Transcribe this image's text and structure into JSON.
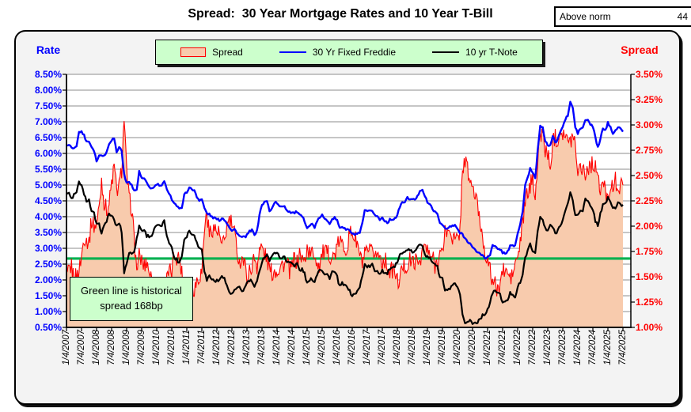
{
  "title": "Spread:  30 Year Mortgage Rates and 10 Year T-Bill",
  "above_norm": {
    "label": "Above norm",
    "value": "44"
  },
  "left_axis_title": "Rate",
  "right_axis_title": "Spread",
  "legend": [
    {
      "label": "Spread"
    },
    {
      "label": "30 Yr Fixed Freddie"
    },
    {
      "label": "10 yr T-Note"
    }
  ],
  "annotation": {
    "line1": "Green line is historical",
    "line2": "spread 168bp"
  },
  "colors": {
    "mortgage_line": "#0000ff",
    "tnote_line": "#000000",
    "spread_line": "#ff0000",
    "spread_fill": "#f8cbad",
    "reference_line": "#00b050",
    "left_axis_text": "#0000ff",
    "right_axis_text": "#ff0000",
    "gridline": "#8c8c8c",
    "legend_bg": "#ccffcc"
  },
  "chart_data": {
    "type": "area+line",
    "title": "Spread:  30 Year Mortgage Rates and 10 Year T-Bill",
    "x_start": "2007-01",
    "x_step": "monthly",
    "x_tick_labels": [
      "1/4/2007",
      "7/4/2007",
      "1/4/2008",
      "7/4/2008",
      "1/4/2009",
      "7/4/2009",
      "1/4/2010",
      "7/4/2010",
      "1/4/2011",
      "7/4/2011",
      "1/4/2012",
      "7/4/2012",
      "1/4/2013",
      "7/4/2013",
      "1/4/2014",
      "7/4/2014",
      "1/4/2015",
      "7/4/2015",
      "1/4/2016",
      "7/4/2016",
      "1/4/2017",
      "7/4/2017",
      "1/4/2018",
      "7/4/2018",
      "1/4/2019",
      "7/4/2019",
      "1/4/2020",
      "7/4/2020",
      "1/4/2021",
      "7/4/2021",
      "1/4/2022",
      "7/4/2022",
      "1/4/2023",
      "7/4/2023",
      "1/4/2024",
      "7/4/2024",
      "1/4/2025",
      "7/4/2025"
    ],
    "left_axis": {
      "title": "Rate",
      "min": 0.5,
      "max": 8.5,
      "step": 0.5,
      "tick_labels": [
        "8.50%",
        "8.00%",
        "7.50%",
        "7.00%",
        "6.50%",
        "6.00%",
        "5.50%",
        "5.00%",
        "4.50%",
        "4.00%",
        "3.50%",
        "3.00%",
        "2.50%",
        "2.00%",
        "1.50%",
        "1.00%",
        "0.50%"
      ]
    },
    "right_axis": {
      "title": "Spread",
      "min": 1.0,
      "max": 3.5,
      "step": 0.25,
      "tick_labels": [
        "3.50%",
        "3.25%",
        "3.00%",
        "2.75%",
        "2.50%",
        "2.25%",
        "2.00%",
        "1.75%",
        "1.50%",
        "1.25%",
        "1.00%"
      ]
    },
    "grid": "horizontal-only",
    "legend_position": "top-center",
    "reference_line": {
      "axis": "right",
      "value": 1.68,
      "color": "#00b050",
      "meaning": "historical spread 168bp"
    },
    "series": [
      {
        "name": "Spread",
        "axis": "right",
        "type": "area",
        "color": "#ff0000",
        "fill": "#f8cbad",
        "derived": "30 Yr Fixed Freddie minus 10 yr T-Note (values computed by renderer)"
      },
      {
        "name": "30 Yr Fixed Freddie",
        "axis": "left",
        "type": "line",
        "color": "#0000ff",
        "values": [
          6.22,
          6.29,
          6.16,
          6.18,
          6.26,
          6.66,
          6.7,
          6.57,
          6.38,
          6.38,
          6.21,
          6.1,
          5.76,
          5.92,
          5.97,
          5.92,
          6.04,
          6.32,
          6.43,
          6.48,
          6.04,
          6.2,
          6.09,
          5.33,
          5.05,
          5.13,
          5.0,
          4.81,
          4.86,
          5.42,
          5.22,
          5.19,
          5.06,
          4.95,
          4.88,
          4.93,
          5.03,
          4.99,
          4.97,
          5.1,
          4.89,
          4.74,
          4.56,
          4.43,
          4.35,
          4.23,
          4.3,
          4.71,
          4.76,
          4.95,
          4.84,
          4.84,
          4.64,
          4.51,
          4.55,
          4.27,
          4.11,
          4.07,
          3.99,
          3.96,
          3.92,
          3.89,
          3.95,
          3.91,
          3.8,
          3.68,
          3.55,
          3.6,
          3.5,
          3.38,
          3.35,
          3.35,
          3.41,
          3.53,
          3.57,
          3.45,
          3.54,
          4.07,
          4.37,
          4.46,
          4.49,
          4.19,
          4.26,
          4.46,
          4.43,
          4.3,
          4.34,
          4.34,
          4.19,
          4.16,
          4.13,
          4.12,
          4.16,
          4.04,
          4.0,
          3.86,
          3.67,
          3.71,
          3.77,
          3.67,
          3.84,
          3.98,
          4.05,
          3.91,
          3.89,
          3.8,
          3.94,
          3.96,
          3.87,
          3.66,
          3.69,
          3.61,
          3.6,
          3.57,
          3.44,
          3.44,
          3.46,
          3.47,
          3.77,
          4.2,
          4.15,
          4.17,
          4.2,
          4.05,
          4.01,
          3.9,
          3.97,
          3.88,
          3.81,
          3.9,
          3.92,
          3.95,
          4.03,
          4.33,
          4.44,
          4.47,
          4.59,
          4.57,
          4.53,
          4.55,
          4.63,
          4.83,
          4.87,
          4.64,
          4.46,
          4.37,
          4.27,
          4.14,
          4.07,
          3.8,
          3.77,
          3.62,
          3.61,
          3.69,
          3.7,
          3.72,
          3.62,
          3.47,
          3.45,
          3.31,
          3.23,
          3.16,
          3.02,
          2.94,
          2.89,
          2.83,
          2.77,
          2.68,
          2.74,
          2.81,
          3.08,
          3.06,
          2.96,
          2.98,
          2.87,
          2.84,
          2.9,
          3.07,
          3.07,
          3.1,
          3.45,
          3.76,
          4.17,
          4.98,
          5.23,
          5.52,
          5.41,
          5.22,
          6.11,
          6.9,
          6.81,
          6.36,
          6.27,
          6.26,
          6.54,
          6.34,
          6.43,
          6.71,
          6.84,
          7.07,
          7.2,
          7.62,
          7.44,
          6.82,
          6.64,
          6.78,
          6.82,
          7.04,
          7.06,
          6.92,
          6.85,
          6.5,
          6.18,
          6.43,
          6.81,
          6.72,
          6.96,
          6.84,
          6.65,
          6.73,
          6.82,
          6.77,
          6.72
        ]
      },
      {
        "name": "10 yr T-Note",
        "axis": "left",
        "type": "line",
        "color": "#000000",
        "values": [
          4.76,
          4.72,
          4.56,
          4.69,
          4.75,
          5.1,
          5.0,
          4.67,
          4.52,
          4.53,
          4.15,
          4.1,
          3.74,
          3.74,
          3.51,
          3.68,
          3.88,
          4.1,
          4.01,
          3.89,
          3.69,
          3.81,
          3.53,
          2.25,
          2.52,
          2.87,
          2.82,
          2.93,
          3.29,
          3.72,
          3.56,
          3.59,
          3.4,
          3.39,
          3.4,
          3.59,
          3.73,
          3.69,
          3.73,
          3.85,
          3.42,
          3.2,
          3.01,
          2.7,
          2.65,
          2.54,
          2.76,
          3.29,
          3.39,
          3.58,
          3.41,
          3.46,
          3.17,
          3.0,
          3.0,
          2.3,
          1.98,
          2.15,
          2.01,
          1.98,
          1.97,
          1.97,
          2.17,
          2.05,
          1.8,
          1.62,
          1.53,
          1.68,
          1.72,
          1.75,
          1.65,
          1.72,
          1.91,
          1.98,
          1.96,
          1.76,
          1.93,
          2.3,
          2.58,
          2.74,
          2.81,
          2.62,
          2.72,
          2.9,
          2.86,
          2.71,
          2.72,
          2.71,
          2.56,
          2.6,
          2.54,
          2.42,
          2.53,
          2.3,
          2.33,
          2.21,
          1.88,
          1.98,
          2.04,
          1.94,
          2.2,
          2.36,
          2.32,
          2.17,
          2.17,
          2.07,
          2.26,
          2.24,
          2.09,
          1.78,
          1.89,
          1.81,
          1.81,
          1.64,
          1.5,
          1.56,
          1.63,
          1.76,
          2.14,
          2.49,
          2.43,
          2.42,
          2.48,
          2.3,
          2.3,
          2.19,
          2.32,
          2.21,
          2.2,
          2.36,
          2.35,
          2.4,
          2.58,
          2.86,
          2.84,
          2.87,
          2.98,
          2.91,
          2.89,
          2.89,
          3.0,
          3.15,
          3.12,
          2.83,
          2.71,
          2.68,
          2.57,
          2.53,
          2.4,
          2.07,
          2.06,
          1.63,
          1.7,
          1.71,
          1.81,
          1.86,
          1.76,
          1.5,
          0.87,
          0.66,
          0.67,
          0.73,
          0.62,
          0.65,
          0.68,
          0.79,
          0.87,
          0.93,
          1.08,
          1.26,
          1.61,
          1.64,
          1.62,
          1.52,
          1.32,
          1.28,
          1.37,
          1.58,
          1.56,
          1.47,
          1.76,
          1.93,
          2.13,
          2.75,
          2.9,
          3.14,
          2.9,
          2.9,
          3.52,
          3.98,
          3.89,
          3.62,
          3.53,
          3.75,
          3.66,
          3.46,
          3.57,
          3.75,
          3.9,
          4.17,
          4.38,
          4.8,
          4.5,
          4.02,
          4.06,
          4.21,
          4.21,
          4.54,
          4.48,
          4.31,
          4.25,
          3.87,
          3.72,
          4.1,
          4.36,
          4.39,
          4.63,
          4.45,
          4.28,
          4.28,
          4.42,
          4.38,
          4.35
        ]
      }
    ],
    "render_hints": {
      "spread_noise_amplitude": 0.09,
      "spread_subsamples": 3,
      "line_noise_amplitude": 0.035
    }
  }
}
